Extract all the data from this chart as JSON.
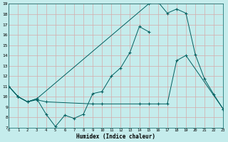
{
  "xlabel": "Humidex (Indice chaleur)",
  "bg_color": "#c5ecec",
  "grid_color": "#d4aaaa",
  "line_color": "#006060",
  "ylim": [
    7,
    19
  ],
  "xlim": [
    0,
    23
  ],
  "yticks": [
    7,
    8,
    9,
    10,
    11,
    12,
    13,
    14,
    15,
    16,
    17,
    18,
    19
  ],
  "xticks": [
    0,
    1,
    2,
    3,
    4,
    5,
    6,
    7,
    8,
    9,
    10,
    11,
    12,
    13,
    14,
    15,
    16,
    17,
    18,
    19,
    20,
    21,
    22,
    23
  ],
  "xtick_labels": [
    "0",
    "1",
    "2",
    "3",
    "4",
    "5",
    "6",
    "7",
    "8",
    "9",
    "10",
    "11",
    "12",
    "13",
    "14",
    "15",
    "16",
    "17",
    "18",
    "19",
    "20",
    "21",
    "22",
    "23"
  ],
  "line1_x": [
    0,
    1,
    2,
    3,
    4,
    5,
    6,
    7,
    8,
    9,
    10,
    11,
    12,
    13,
    14,
    15
  ],
  "line1_y": [
    11,
    10,
    9.5,
    9.8,
    8.3,
    7.1,
    8.2,
    7.9,
    8.3,
    10.3,
    10.5,
    12.0,
    12.8,
    14.3,
    16.8,
    16.3
  ],
  "line2_x": [
    0,
    1,
    2,
    3,
    15,
    16,
    17,
    18,
    19,
    20,
    21,
    22,
    23
  ],
  "line2_y": [
    11,
    10,
    9.5,
    9.8,
    19.0,
    19.2,
    18.1,
    18.5,
    18.1,
    14.1,
    11.7,
    10.2,
    8.8
  ],
  "line3_x": [
    0,
    1,
    2,
    3,
    4,
    9,
    10,
    14,
    15,
    16,
    17,
    18,
    19,
    23
  ],
  "line3_y": [
    11,
    10,
    9.5,
    9.7,
    9.5,
    9.3,
    9.3,
    9.3,
    9.3,
    9.3,
    9.3,
    13.5,
    14.0,
    8.8
  ]
}
